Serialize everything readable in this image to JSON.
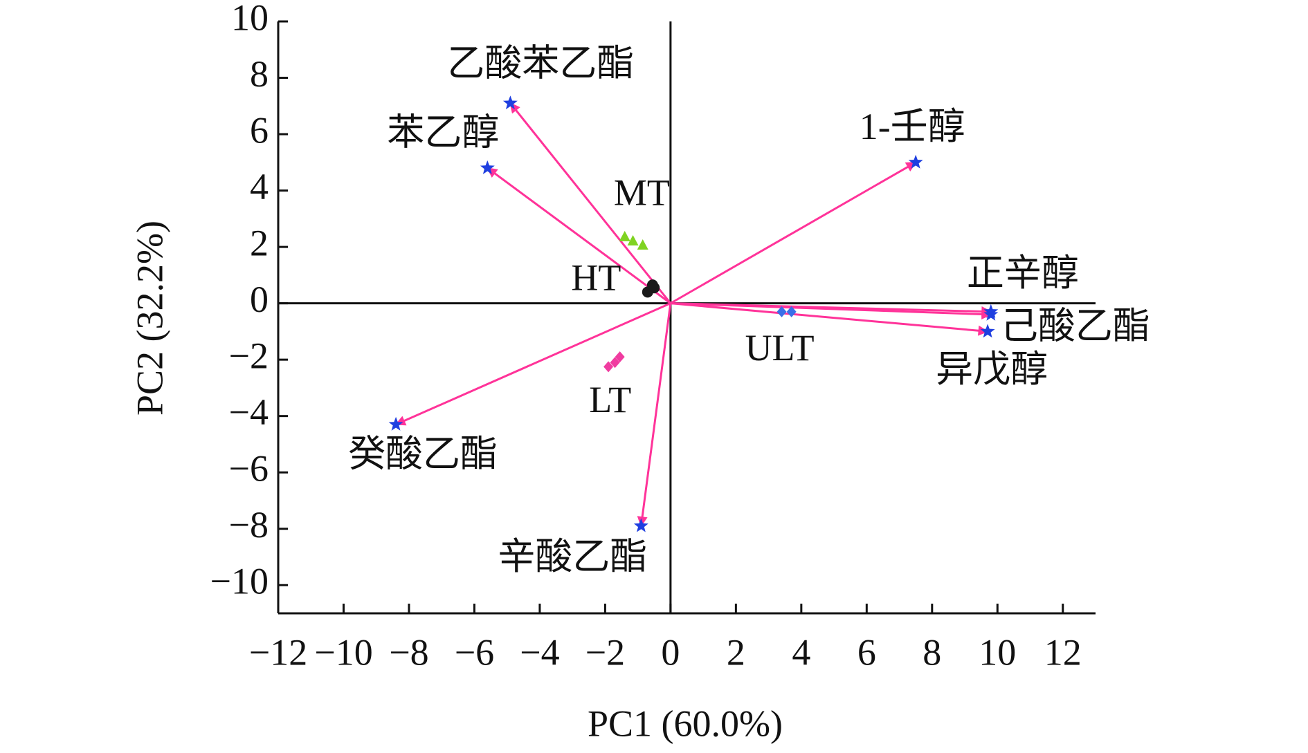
{
  "chart_data": {
    "type": "biplot",
    "xlabel": "PC1 (60.0%)",
    "ylabel": "PC2 (32.2%)",
    "xlim": [
      -12,
      13
    ],
    "ylim": [
      -11,
      10
    ],
    "xticks": [
      {
        "value": -12,
        "label": "−12"
      },
      {
        "value": -10,
        "label": "−10"
      },
      {
        "value": -8,
        "label": "−8"
      },
      {
        "value": -6,
        "label": "−6"
      },
      {
        "value": -4,
        "label": "−4"
      },
      {
        "value": -2,
        "label": "−2"
      },
      0,
      2,
      4,
      6,
      8,
      10,
      12
    ],
    "yticks": [
      {
        "value": -10,
        "label": "−10"
      },
      {
        "value": -8,
        "label": "−8"
      },
      {
        "value": -6,
        "label": "−6"
      },
      {
        "value": -4,
        "label": "−4"
      },
      {
        "value": -2,
        "label": "−2"
      },
      0,
      2,
      4,
      6,
      8,
      10
    ],
    "loadings": {
      "names": [
        "乙酸苯乙酯",
        "苯乙醇",
        "1-壬醇",
        "正辛醇",
        "己酸乙酯",
        "异戊醇",
        "癸酸乙酯",
        "辛酸乙酯"
      ],
      "x": [
        -4.9,
        -5.6,
        7.5,
        9.8,
        9.8,
        9.7,
        -8.4,
        -0.9
      ],
      "y": [
        7.1,
        4.8,
        5.0,
        -0.3,
        -0.4,
        -1.0,
        -4.3,
        -7.9
      ],
      "color": "#1f3fe0",
      "arrow_color": "#ff3399"
    },
    "series": [
      {
        "name": "MT",
        "marker": "triangle",
        "color": "#7fd321",
        "x": [
          -1.4,
          -1.15,
          -0.85
        ],
        "y": [
          2.35,
          2.2,
          2.05
        ]
      },
      {
        "name": "HT",
        "marker": "circle",
        "color": "#1a1a1a",
        "x": [
          -0.7,
          -0.55,
          -0.5
        ],
        "y": [
          0.4,
          0.65,
          0.55
        ]
      },
      {
        "name": "LT",
        "marker": "diamond",
        "color": "#f03ca0",
        "x": [
          -1.9,
          -1.7,
          -1.55
        ],
        "y": [
          -2.25,
          -2.1,
          -1.9
        ]
      },
      {
        "name": "ULT",
        "marker": "diamond",
        "color": "#3a6fe8",
        "x": [
          3.4,
          3.7
        ],
        "y": [
          -0.3,
          -0.3
        ]
      }
    ]
  }
}
